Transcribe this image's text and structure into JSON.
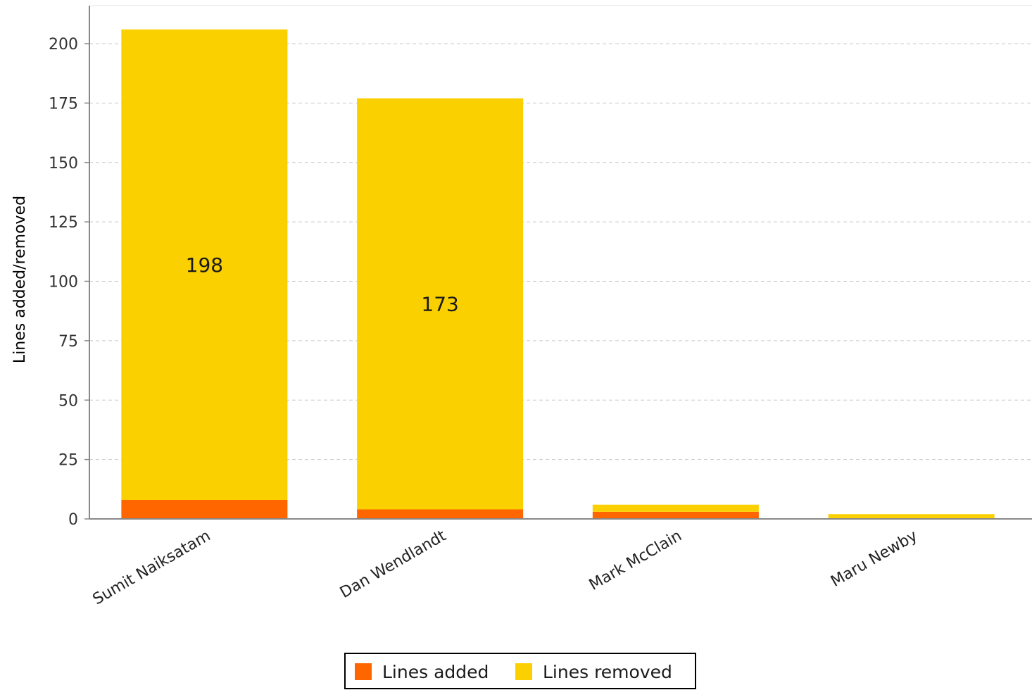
{
  "chart_data": {
    "type": "bar",
    "stacked": true,
    "categories": [
      "Sumit Naiksatam",
      "Dan Wendlandt",
      "Mark McClain",
      "Maru Newby"
    ],
    "series": [
      {
        "name": "Lines added",
        "color": "#ff6600",
        "values": [
          8,
          4,
          3,
          0
        ]
      },
      {
        "name": "Lines removed",
        "color": "#fad000",
        "values": [
          198,
          173,
          3,
          2
        ]
      }
    ],
    "data_labels": [
      {
        "category": "Sumit Naiksatam",
        "series": "Lines removed",
        "text": "198"
      },
      {
        "category": "Dan Wendlandt",
        "series": "Lines removed",
        "text": "173"
      }
    ],
    "title": "",
    "xlabel": "",
    "ylabel": "Lines added/removed",
    "ylim": [
      0,
      216
    ],
    "yticks": [
      0,
      25,
      50,
      75,
      100,
      125,
      150,
      175,
      200
    ],
    "grid": true,
    "legend": "bottom"
  }
}
